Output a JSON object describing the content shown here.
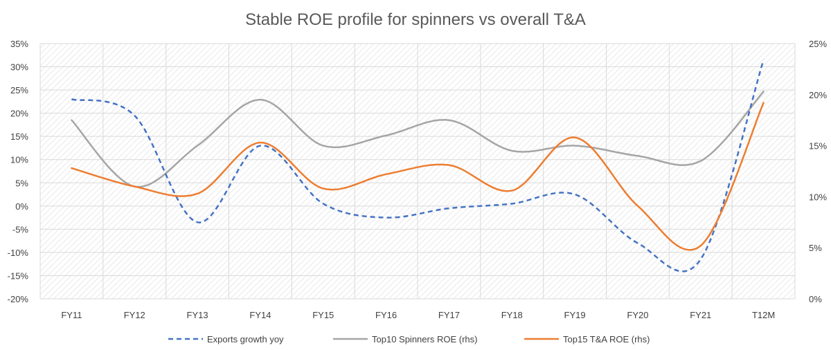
{
  "chart_data": {
    "type": "line",
    "title": "Stable ROE profile for spinners vs overall T&A",
    "categories": [
      "FY11",
      "FY12",
      "FY13",
      "FY14",
      "FY15",
      "FY16",
      "FY17",
      "FY18",
      "FY19",
      "FY20",
      "FY21",
      "T12M"
    ],
    "y_left": {
      "ylim": [
        -20,
        35
      ],
      "ticks": [
        -20,
        -15,
        -10,
        -5,
        0,
        5,
        10,
        15,
        20,
        25,
        30,
        35
      ],
      "tick_labels": [
        "-20%",
        "-15%",
        "-10%",
        "-5%",
        "0%",
        "5%",
        "10%",
        "15%",
        "20%",
        "25%",
        "30%",
        "35%"
      ]
    },
    "y_right": {
      "ylim": [
        0,
        25
      ],
      "ticks": [
        0,
        5,
        10,
        15,
        20,
        25
      ],
      "tick_labels": [
        "0%",
        "5%",
        "10%",
        "15%",
        "20%",
        "25%"
      ]
    },
    "series": [
      {
        "name": "Exports growth yoy",
        "axis": "left",
        "color": "#4472C4",
        "dash": true,
        "values": [
          23,
          19.5,
          -3.5,
          13,
          0.5,
          -2.5,
          -0.5,
          0.5,
          2.5,
          -8,
          -11.5,
          31.5
        ]
      },
      {
        "name": "Top10 Spinners ROE (rhs)",
        "axis": "right",
        "color": "#A5A5A5",
        "dash": false,
        "values": [
          17.5,
          11,
          15,
          19.5,
          15,
          16,
          17.5,
          14.5,
          15,
          14,
          13.5,
          20.3
        ]
      },
      {
        "name": "Top15 T&A ROE (rhs)",
        "axis": "right",
        "color": "#ED7D31",
        "dash": false,
        "values": [
          12.8,
          11,
          10.3,
          15.3,
          10.8,
          12.2,
          13.1,
          10.6,
          15.8,
          9.1,
          5.2,
          19.2
        ]
      }
    ],
    "legend_position": "bottom",
    "grid": true
  }
}
